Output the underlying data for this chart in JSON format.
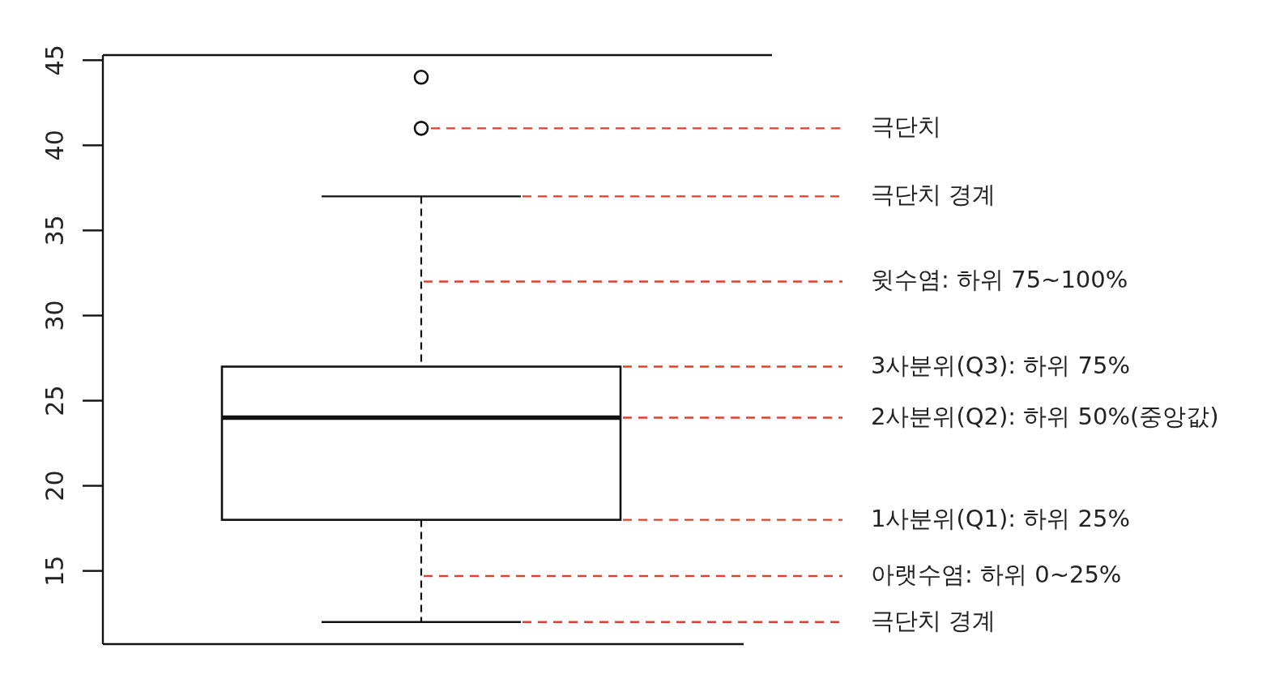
{
  "chart_data": {
    "type": "box",
    "categories": [
      null
    ],
    "boxes": [
      {
        "low": 12,
        "q1": 18,
        "median": 24,
        "q3": 27,
        "high": 37,
        "outliers": [
          41,
          44
        ]
      }
    ],
    "ylim": [
      10.7,
      45.3
    ],
    "yticks": [
      15,
      20,
      25,
      30,
      35,
      40,
      45
    ],
    "tick_labels": "y",
    "ref_lines": [
      {
        "axis": "y",
        "value": 41,
        "label": "극단치",
        "color": "#e0402a",
        "line_style": "dashed"
      },
      {
        "axis": "y",
        "value": 37,
        "label": "극단치 경계",
        "color": "#e0402a",
        "line_style": "dashed"
      },
      {
        "axis": "y",
        "value": 32,
        "label": "윗수염: 하위 75~100%",
        "color": "#e0402a",
        "line_style": "dashed"
      },
      {
        "axis": "y",
        "value": 27,
        "label": "3사분위(Q3): 하위 75%",
        "color": "#e0402a",
        "line_style": "dashed"
      },
      {
        "axis": "y",
        "value": 24,
        "label": "2사분위(Q2): 하위 50%(중앙값)",
        "color": "#e0402a",
        "line_style": "dashed"
      },
      {
        "axis": "y",
        "value": 18,
        "label": "1사분위(Q1): 하위 25%",
        "color": "#e0402a",
        "line_style": "dashed"
      },
      {
        "axis": "y",
        "value": 14.7,
        "label": "아랫수염: 하위 0~25%",
        "color": "#e0402a",
        "line_style": "dashed"
      },
      {
        "axis": "y",
        "value": 12,
        "label": "극단치 경계",
        "color": "#e0402a",
        "line_style": "dashed"
      }
    ]
  }
}
